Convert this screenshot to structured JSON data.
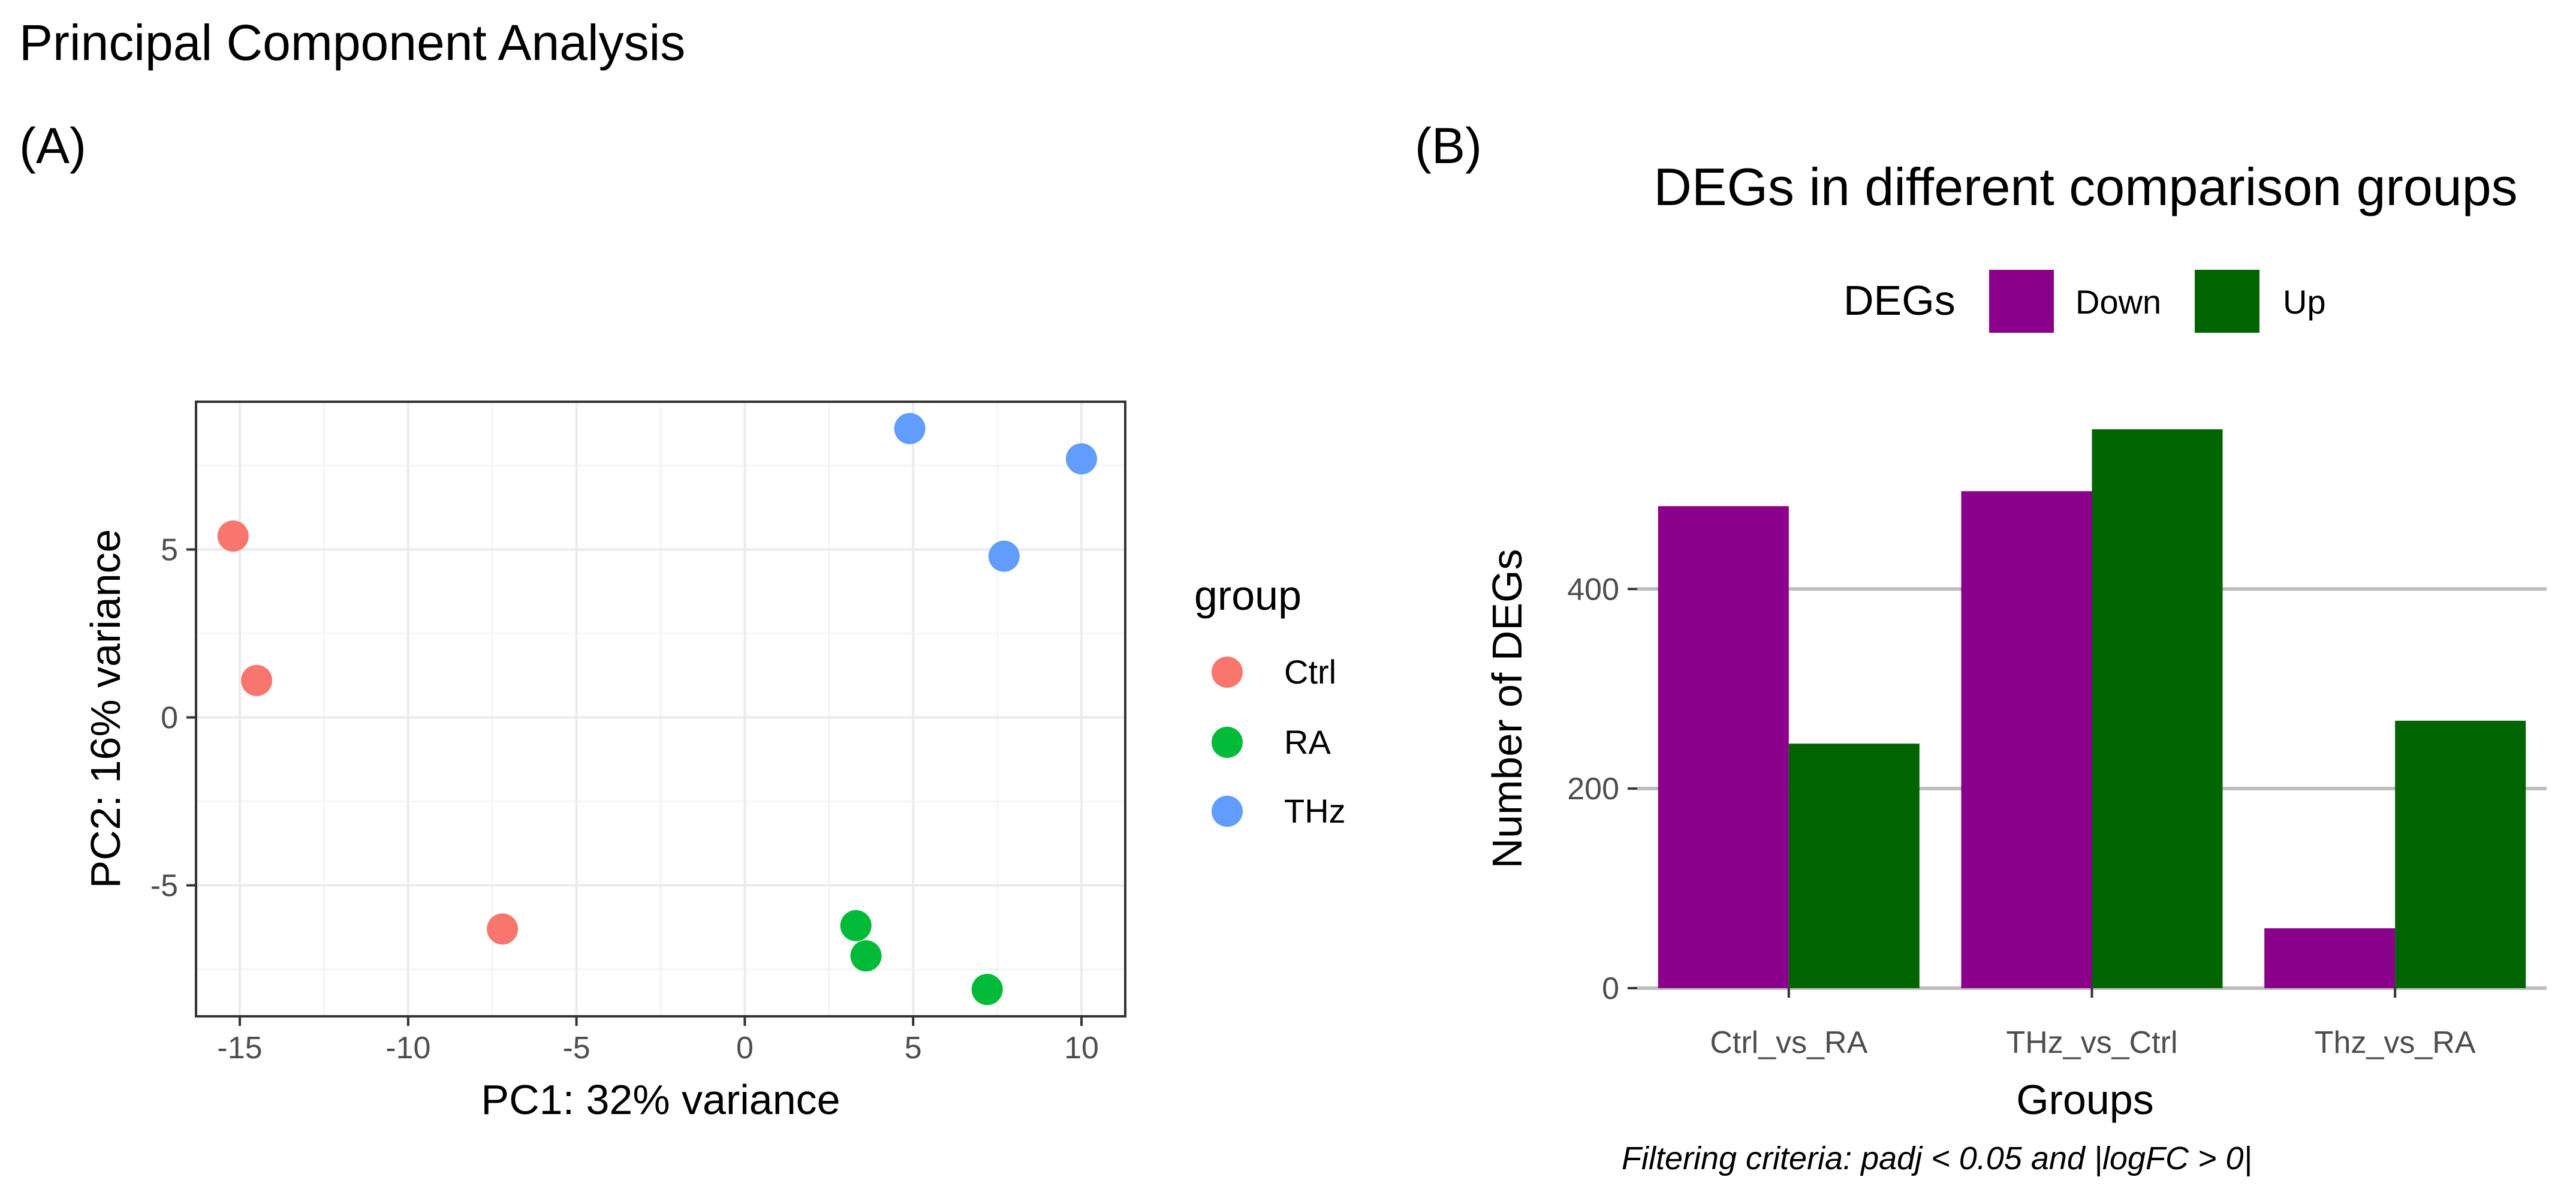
{
  "page_title": "Principal Component Analysis",
  "chart_data": [
    {
      "panel": "(A)",
      "type": "scatter",
      "title": "",
      "xlabel": "PC1: 32% variance",
      "ylabel": "PC2: 16% variance",
      "xlim": [
        -16.3,
        11.3
      ],
      "ylim": [
        -8.9,
        9.4
      ],
      "xticks": [
        -15,
        -10,
        -5,
        0,
        5,
        10
      ],
      "xtick_labels": [
        "-15",
        "-10",
        "-5",
        "0",
        "5",
        "10"
      ],
      "yticks": [
        -5,
        0,
        5
      ],
      "ytick_labels": [
        "-5",
        "0",
        "5"
      ],
      "grid": true,
      "legend": {
        "title": "group",
        "position": "right"
      },
      "series": [
        {
          "name": "Ctrl",
          "color": "#F8766D",
          "points": [
            [
              -15.2,
              5.4
            ],
            [
              -14.5,
              1.1
            ],
            [
              -7.2,
              -6.3
            ]
          ]
        },
        {
          "name": "RA",
          "color": "#00BA38",
          "points": [
            [
              3.3,
              -6.2
            ],
            [
              3.6,
              -7.1
            ],
            [
              7.2,
              -8.1
            ]
          ]
        },
        {
          "name": "THz",
          "color": "#619CFF",
          "points": [
            [
              4.9,
              8.6
            ],
            [
              10.0,
              7.7
            ],
            [
              7.7,
              4.8
            ]
          ]
        }
      ]
    },
    {
      "panel": "(B)",
      "type": "bar",
      "title": "DEGs in different comparison groups",
      "xlabel": "Groups",
      "ylabel": "Number of DEGs",
      "ylim": [
        0,
        560
      ],
      "yticks": [
        0,
        200,
        400
      ],
      "ytick_labels": [
        "0",
        "200",
        "400"
      ],
      "categories": [
        "Ctrl_vs_RA",
        "THz_vs_Ctrl",
        "Thz_vs_RA"
      ],
      "legend": {
        "title": "DEGs",
        "position": "top"
      },
      "series": [
        {
          "name": "Down",
          "color": "#8B008B",
          "values": [
            483,
            498,
            60
          ]
        },
        {
          "name": "Up",
          "color": "#006400",
          "values": [
            245,
            560,
            268
          ]
        }
      ],
      "caption": "Filtering criteria: padj < 0.05 and |logFC > 0|"
    }
  ]
}
